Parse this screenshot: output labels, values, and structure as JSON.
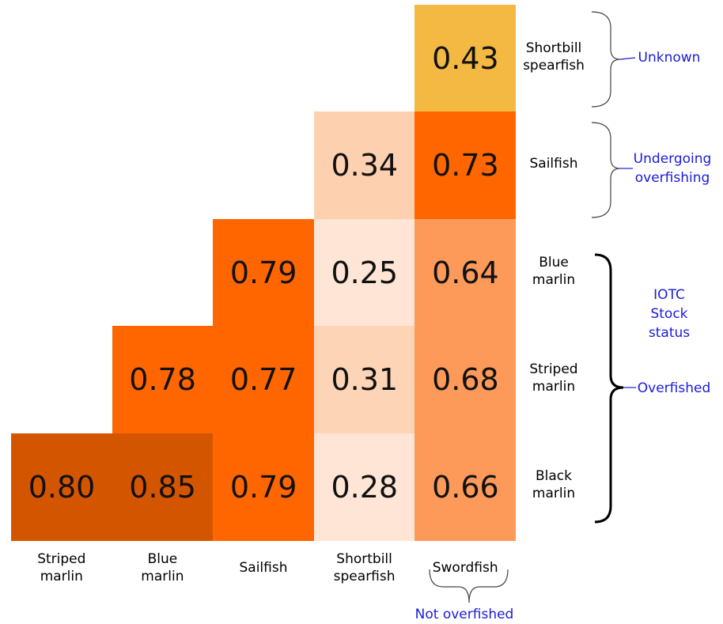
{
  "rows": [
    {
      "label": "Shortbill\nspearfish",
      "cells": [
        null,
        null,
        null,
        null,
        {
          "value": "0.43",
          "color": "#f4b942"
        }
      ]
    },
    {
      "label": "Sailfish",
      "cells": [
        null,
        null,
        null,
        {
          "value": "0.34",
          "color": "#fdd0b0"
        },
        {
          "value": "0.73",
          "color": "#ff6600"
        }
      ]
    },
    {
      "label": "Blue\nmarlin",
      "cells": [
        null,
        null,
        {
          "value": "0.79",
          "color": "#ff6600"
        },
        {
          "value": "0.25",
          "color": "#fee5d5"
        },
        {
          "value": "0.64",
          "color": "#fd9a5a"
        }
      ]
    },
    {
      "label": "Striped\nmarlin",
      "cells": [
        null,
        {
          "value": "0.78",
          "color": "#ff6600"
        },
        {
          "value": "0.77",
          "color": "#ff6600"
        },
        {
          "value": "0.31",
          "color": "#fdd4b6"
        },
        {
          "value": "0.68",
          "color": "#fd9a5a"
        }
      ]
    },
    {
      "label": "Black\nmarlin",
      "cells": [
        {
          "value": "0.80",
          "color": "#d45500"
        },
        {
          "value": "0.85",
          "color": "#d45500"
        },
        {
          "value": "0.79",
          "color": "#ff6600"
        },
        {
          "value": "0.28",
          "color": "#fee5d5"
        },
        {
          "value": "0.66",
          "color": "#fd9a5a"
        }
      ]
    }
  ],
  "columns": [
    "Striped\nmarlin",
    "Blue\nmarlin",
    "Sailfish",
    "Shortbill\nspearfish",
    "Swordfish"
  ],
  "annotations": {
    "unknown": "Unknown",
    "undergoing": "Undergoing\noverfishing",
    "iotc": "IOTC\nStock status",
    "overfished": "Overfished",
    "not_overfished": "Not overfished"
  }
}
